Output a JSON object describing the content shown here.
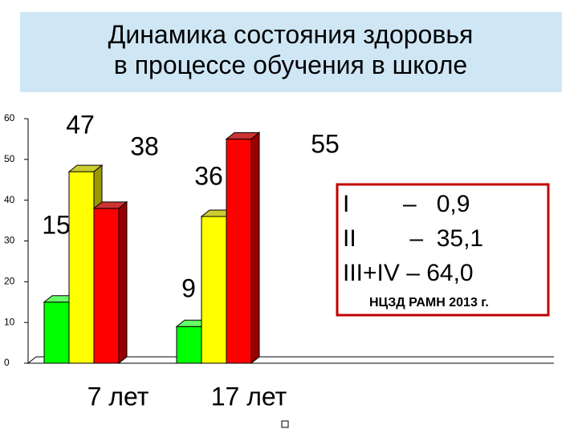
{
  "chart_data": {
    "type": "bar",
    "title": "Динамика состояния здоровья в процессе обучения в школе",
    "categories": [
      "7 лет",
      "17 лет"
    ],
    "series": [
      {
        "color": "#00ff00",
        "values": [
          15,
          9
        ]
      },
      {
        "color": "#ffff00",
        "values": [
          47,
          36
        ]
      },
      {
        "color": "#ff0000",
        "values": [
          38,
          55
        ]
      }
    ],
    "ylim": [
      0,
      60
    ],
    "yticks": [
      0,
      10,
      20,
      30,
      40,
      50,
      60
    ],
    "annotations": [
      "I        –   0,9",
      "II        –  35,1",
      "III+IV – 64,0",
      "НЦЗД РАМН 2013 г."
    ]
  }
}
